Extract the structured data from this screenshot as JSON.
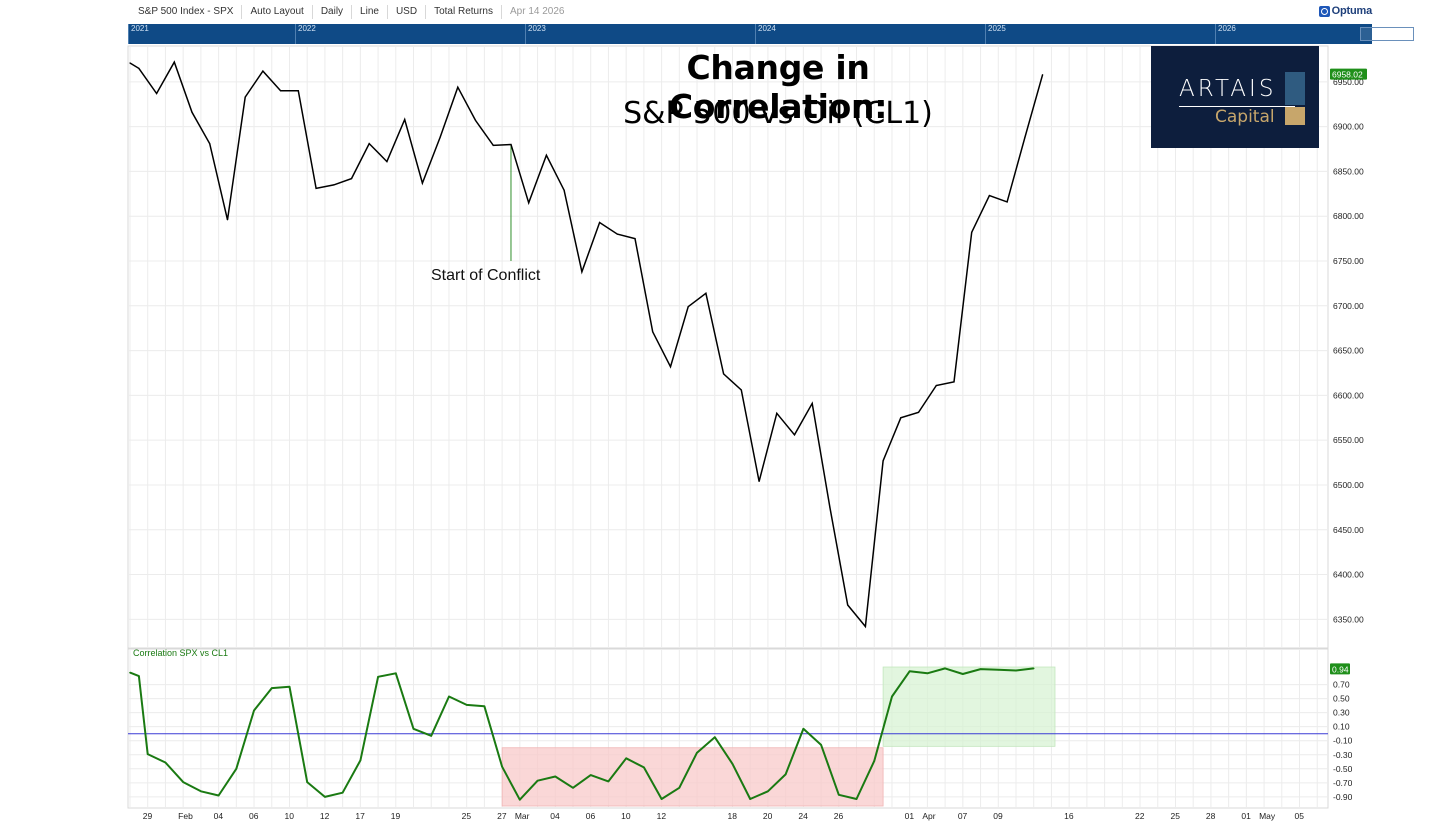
{
  "toolbar": {
    "instrument": "S&P 500 Index - SPX",
    "layout": "Auto Layout",
    "frequency": "Daily",
    "chart_style": "Line",
    "currency": "USD",
    "returns": "Total Returns",
    "date": "Apr 14 2026",
    "brand": "Optuma"
  },
  "navigator": {
    "years": [
      "2021",
      "2022",
      "2023",
      "2024",
      "2025",
      "2026"
    ]
  },
  "colors": {
    "price_line": "#000000",
    "correlation_line": "#1a7a12",
    "zero_line": "#3b3bd6",
    "negative_zone": "#f8c9c9",
    "positive_zone": "#d6f2d1",
    "last_price_badge": "#1f8f1a",
    "navigator_bg": "#0f4a86"
  },
  "logo": {
    "word": "ARTAIS",
    "sub": "Capital"
  },
  "chart_data": [
    {
      "type": "line",
      "title": "Change in Correlation:",
      "subtitle": "S&P 500 vs Oil (CL1)",
      "ylim": [
        6318,
        6990
      ],
      "yticks": [
        "6350.00",
        "6400.00",
        "6450.00",
        "6500.00",
        "6550.00",
        "6600.00",
        "6650.00",
        "6700.00",
        "6750.00",
        "6800.00",
        "6850.00",
        "6900.00",
        "6950.00"
      ],
      "last_value": "6958.02",
      "x_index_range": [
        0,
        68
      ],
      "x_labels": [
        {
          "i": 1,
          "label": "29"
        },
        {
          "i": 3,
          "label": "Feb"
        },
        {
          "i": 5,
          "label": "04"
        },
        {
          "i": 7,
          "label": "06"
        },
        {
          "i": 9,
          "label": "10"
        },
        {
          "i": 11,
          "label": "12"
        },
        {
          "i": 13,
          "label": "17"
        },
        {
          "i": 15,
          "label": "19"
        },
        {
          "i": 19,
          "label": "25"
        },
        {
          "i": 21,
          "label": "27"
        },
        {
          "i": 22,
          "label": "Mar"
        },
        {
          "i": 24,
          "label": "04"
        },
        {
          "i": 26,
          "label": "06"
        },
        {
          "i": 28,
          "label": "10"
        },
        {
          "i": 30,
          "label": "12"
        },
        {
          "i": 34,
          "label": "18"
        },
        {
          "i": 36,
          "label": "20"
        },
        {
          "i": 38,
          "label": "24"
        },
        {
          "i": 40,
          "label": "26"
        },
        {
          "i": 44,
          "label": "01"
        },
        {
          "i": 45,
          "label": "Apr"
        },
        {
          "i": 47,
          "label": "07"
        },
        {
          "i": 49,
          "label": "09"
        },
        {
          "i": 53,
          "label": "16"
        },
        {
          "i": 57,
          "label": "22"
        },
        {
          "i": 59,
          "label": "25"
        },
        {
          "i": 61,
          "label": "28"
        },
        {
          "i": 63,
          "label": "01"
        },
        {
          "i": 64,
          "label": "May"
        },
        {
          "i": 66,
          "label": "05"
        }
      ],
      "annotation": {
        "label": "Start of Conflict",
        "i": 21.5,
        "value_top": 6880,
        "value_bottom": 6750
      },
      "series": [
        {
          "values": [
            {
              "i": 0,
              "y": 6971
            },
            {
              "i": 0.5,
              "y": 6965
            },
            {
              "i": 1.5,
              "y": 6937
            },
            {
              "i": 2.5,
              "y": 6972
            },
            {
              "i": 3.5,
              "y": 6916
            },
            {
              "i": 4.5,
              "y": 6881
            },
            {
              "i": 5.5,
              "y": 6796
            },
            {
              "i": 6.5,
              "y": 6933
            },
            {
              "i": 7.5,
              "y": 6962
            },
            {
              "i": 8.5,
              "y": 6940
            },
            {
              "i": 9.5,
              "y": 6940
            },
            {
              "i": 10.5,
              "y": 6831
            },
            {
              "i": 11.5,
              "y": 6835
            },
            {
              "i": 12.5,
              "y": 6842
            },
            {
              "i": 13.5,
              "y": 6881
            },
            {
              "i": 14.5,
              "y": 6861
            },
            {
              "i": 15.5,
              "y": 6908
            },
            {
              "i": 16.5,
              "y": 6837
            },
            {
              "i": 17.5,
              "y": 6888
            },
            {
              "i": 18.5,
              "y": 6944
            },
            {
              "i": 19.5,
              "y": 6907
            },
            {
              "i": 20.5,
              "y": 6879
            },
            {
              "i": 21.5,
              "y": 6880
            },
            {
              "i": 22.5,
              "y": 6815
            },
            {
              "i": 23.5,
              "y": 6868
            },
            {
              "i": 24.5,
              "y": 6829
            },
            {
              "i": 25.5,
              "y": 6738
            },
            {
              "i": 26.5,
              "y": 6793
            },
            {
              "i": 27.5,
              "y": 6780
            },
            {
              "i": 28.5,
              "y": 6775
            },
            {
              "i": 29.5,
              "y": 6671
            },
            {
              "i": 30.5,
              "y": 6632
            },
            {
              "i": 31.5,
              "y": 6699
            },
            {
              "i": 32.5,
              "y": 6714
            },
            {
              "i": 33.5,
              "y": 6624
            },
            {
              "i": 34.5,
              "y": 6606
            },
            {
              "i": 35.5,
              "y": 6504
            },
            {
              "i": 36.5,
              "y": 6580
            },
            {
              "i": 37.5,
              "y": 6556
            },
            {
              "i": 38.5,
              "y": 6591
            },
            {
              "i": 39.5,
              "y": 6475
            },
            {
              "i": 40.5,
              "y": 6366
            },
            {
              "i": 41.5,
              "y": 6342
            },
            {
              "i": 42.5,
              "y": 6527
            },
            {
              "i": 43.5,
              "y": 6575
            },
            {
              "i": 44.5,
              "y": 6581
            },
            {
              "i": 45.5,
              "y": 6611
            },
            {
              "i": 46.5,
              "y": 6615
            },
            {
              "i": 47.5,
              "y": 6782
            },
            {
              "i": 48.5,
              "y": 6823
            },
            {
              "i": 49.5,
              "y": 6816
            },
            {
              "i": 50.5,
              "y": 6888
            },
            {
              "i": 51.5,
              "y": 6958
            }
          ]
        }
      ]
    },
    {
      "type": "line",
      "title": "Correlation SPX vs CL1",
      "ylim": [
        -1.03,
        1.05
      ],
      "yticks": [
        "0.70",
        "0.50",
        "0.30",
        "0.10",
        "-0.10",
        "-0.30",
        "-0.50",
        "-0.70",
        "-0.90"
      ],
      "last_value": "0.94",
      "reference_line": 0,
      "zones": [
        {
          "kind": "negative",
          "i_start": 21,
          "i_end": 42.5,
          "y_top": -0.2,
          "y_bottom": -1.03
        },
        {
          "kind": "positive",
          "i_start": 42.5,
          "i_end": 52.2,
          "y_top": 0.95,
          "y_bottom": -0.18
        }
      ],
      "series": [
        {
          "values": [
            {
              "i": 0,
              "y": 0.87
            },
            {
              "i": 0.5,
              "y": 0.82
            },
            {
              "i": 1,
              "y": -0.29
            },
            {
              "i": 2,
              "y": -0.41
            },
            {
              "i": 3,
              "y": -0.69
            },
            {
              "i": 4,
              "y": -0.82
            },
            {
              "i": 5,
              "y": -0.88
            },
            {
              "i": 6,
              "y": -0.5
            },
            {
              "i": 7,
              "y": 0.33
            },
            {
              "i": 8,
              "y": 0.65
            },
            {
              "i": 9,
              "y": 0.67
            },
            {
              "i": 10,
              "y": -0.69
            },
            {
              "i": 11,
              "y": -0.9
            },
            {
              "i": 12,
              "y": -0.84
            },
            {
              "i": 13,
              "y": -0.38
            },
            {
              "i": 14,
              "y": 0.81
            },
            {
              "i": 15,
              "y": 0.86
            },
            {
              "i": 16,
              "y": 0.07
            },
            {
              "i": 17,
              "y": -0.03
            },
            {
              "i": 18,
              "y": 0.53
            },
            {
              "i": 19,
              "y": 0.41
            },
            {
              "i": 20,
              "y": 0.39
            },
            {
              "i": 21,
              "y": -0.47
            },
            {
              "i": 22,
              "y": -0.94
            },
            {
              "i": 23,
              "y": -0.67
            },
            {
              "i": 24,
              "y": -0.61
            },
            {
              "i": 25,
              "y": -0.77
            },
            {
              "i": 26,
              "y": -0.59
            },
            {
              "i": 27,
              "y": -0.68
            },
            {
              "i": 28,
              "y": -0.35
            },
            {
              "i": 29,
              "y": -0.48
            },
            {
              "i": 30,
              "y": -0.93
            },
            {
              "i": 31,
              "y": -0.77
            },
            {
              "i": 32,
              "y": -0.27
            },
            {
              "i": 33,
              "y": -0.05
            },
            {
              "i": 34,
              "y": -0.43
            },
            {
              "i": 35,
              "y": -0.93
            },
            {
              "i": 36,
              "y": -0.82
            },
            {
              "i": 37,
              "y": -0.58
            },
            {
              "i": 38,
              "y": 0.07
            },
            {
              "i": 39,
              "y": -0.16
            },
            {
              "i": 40,
              "y": -0.87
            },
            {
              "i": 41,
              "y": -0.93
            },
            {
              "i": 42,
              "y": -0.39
            },
            {
              "i": 43,
              "y": 0.53
            },
            {
              "i": 44,
              "y": 0.89
            },
            {
              "i": 45,
              "y": 0.86
            },
            {
              "i": 46,
              "y": 0.93
            },
            {
              "i": 47,
              "y": 0.85
            },
            {
              "i": 48,
              "y": 0.92
            },
            {
              "i": 49,
              "y": 0.91
            },
            {
              "i": 50,
              "y": 0.9
            },
            {
              "i": 51,
              "y": 0.93
            }
          ]
        }
      ]
    }
  ]
}
